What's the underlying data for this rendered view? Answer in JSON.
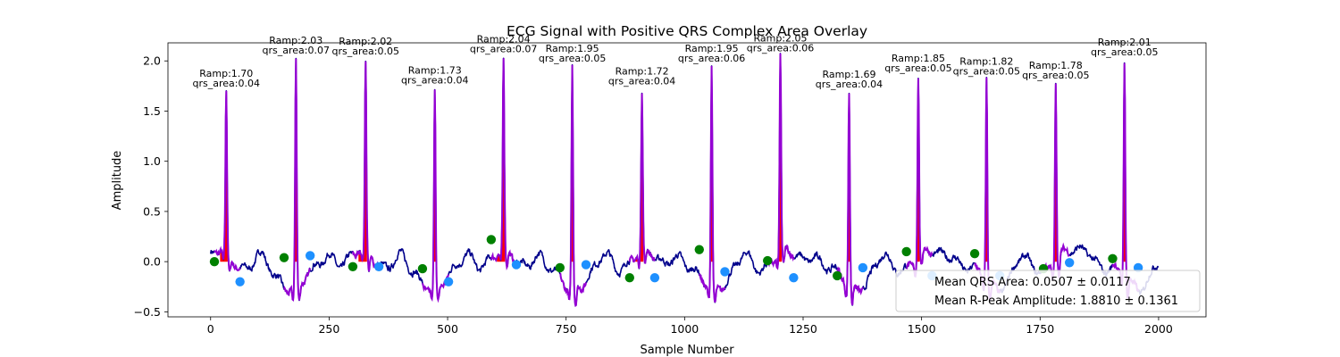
{
  "chart_data": {
    "type": "line",
    "title": "ECG Signal with Positive QRS Complex Area Overlay",
    "xlabel": "Sample Number",
    "ylabel": "Amplitude",
    "xlim": [
      -90,
      2100
    ],
    "ylim": [
      -0.55,
      2.18
    ],
    "xticks": [
      0,
      250,
      500,
      750,
      1000,
      1250,
      1500,
      1750,
      2000
    ],
    "yticks": [
      -0.5,
      0.0,
      0.5,
      1.0,
      1.5,
      2.0
    ],
    "xtick_labels": [
      "0",
      "250",
      "500",
      "750",
      "1000",
      "1250",
      "1500",
      "1750",
      "2000"
    ],
    "ytick_labels": [
      "−0.5",
      "0.0",
      "0.5",
      "1.0",
      "1.5",
      "2.0"
    ],
    "grid": false,
    "legend_position": "lower-right",
    "colors": {
      "signal": "#00008b",
      "qrs_segment": "#9400d3",
      "qrs_area": "#ff0000",
      "onset_marker": "#008000",
      "offset_marker": "#1e90ff"
    },
    "beats": [
      {
        "r_x": 33,
        "r_amp": 1.7,
        "qrs_area": 0.04,
        "onset_x": 8,
        "onset_y": 0.0,
        "offset_x": 62,
        "offset_y": -0.2,
        "ramp_label": "Ramp:1.70",
        "area_label": "qrs_area:0.04"
      },
      {
        "r_x": 180,
        "r_amp": 2.03,
        "qrs_area": 0.07,
        "onset_x": 155,
        "onset_y": 0.04,
        "offset_x": 210,
        "offset_y": 0.06,
        "ramp_label": "Ramp:2.03",
        "area_label": "qrs_area:0.07"
      },
      {
        "r_x": 327,
        "r_amp": 2.02,
        "qrs_area": 0.05,
        "onset_x": 300,
        "onset_y": -0.05,
        "offset_x": 355,
        "offset_y": -0.05,
        "ramp_label": "Ramp:2.02",
        "area_label": "qrs_area:0.05"
      },
      {
        "r_x": 473,
        "r_amp": 1.73,
        "qrs_area": 0.04,
        "onset_x": 447,
        "onset_y": -0.07,
        "offset_x": 502,
        "offset_y": -0.2,
        "ramp_label": "Ramp:1.73",
        "area_label": "qrs_area:0.04"
      },
      {
        "r_x": 618,
        "r_amp": 2.04,
        "qrs_area": 0.07,
        "onset_x": 592,
        "onset_y": 0.22,
        "offset_x": 645,
        "offset_y": -0.03,
        "ramp_label": "Ramp:2.04",
        "area_label": "qrs_area:0.07"
      },
      {
        "r_x": 763,
        "r_amp": 1.95,
        "qrs_area": 0.05,
        "onset_x": 737,
        "onset_y": -0.06,
        "offset_x": 792,
        "offset_y": -0.03,
        "ramp_label": "Ramp:1.95",
        "area_label": "qrs_area:0.05"
      },
      {
        "r_x": 910,
        "r_amp": 1.72,
        "qrs_area": 0.04,
        "onset_x": 884,
        "onset_y": -0.16,
        "offset_x": 937,
        "offset_y": -0.16,
        "ramp_label": "Ramp:1.72",
        "area_label": "qrs_area:0.04"
      },
      {
        "r_x": 1057,
        "r_amp": 1.95,
        "qrs_area": 0.06,
        "onset_x": 1031,
        "onset_y": 0.12,
        "offset_x": 1085,
        "offset_y": -0.1,
        "ramp_label": "Ramp:1.95",
        "area_label": "qrs_area:0.06"
      },
      {
        "r_x": 1202,
        "r_amp": 2.05,
        "qrs_area": 0.06,
        "onset_x": 1175,
        "onset_y": 0.01,
        "offset_x": 1230,
        "offset_y": -0.16,
        "ramp_label": "Ramp:2.05",
        "area_label": "qrs_area:0.06"
      },
      {
        "r_x": 1347,
        "r_amp": 1.69,
        "qrs_area": 0.04,
        "onset_x": 1322,
        "onset_y": -0.14,
        "offset_x": 1376,
        "offset_y": -0.06,
        "ramp_label": "Ramp:1.69",
        "area_label": "qrs_area:0.04"
      },
      {
        "r_x": 1493,
        "r_amp": 1.85,
        "qrs_area": 0.05,
        "onset_x": 1468,
        "onset_y": 0.1,
        "offset_x": 1522,
        "offset_y": -0.14,
        "ramp_label": "Ramp:1.85",
        "area_label": "qrs_area:0.05"
      },
      {
        "r_x": 1637,
        "r_amp": 1.82,
        "qrs_area": 0.05,
        "onset_x": 1612,
        "onset_y": 0.08,
        "offset_x": 1665,
        "offset_y": -0.14,
        "ramp_label": "Ramp:1.82",
        "area_label": "qrs_area:0.05"
      },
      {
        "r_x": 1783,
        "r_amp": 1.78,
        "qrs_area": 0.05,
        "onset_x": 1757,
        "onset_y": -0.07,
        "offset_x": 1812,
        "offset_y": -0.01,
        "ramp_label": "Ramp:1.78",
        "area_label": "qrs_area:0.05"
      },
      {
        "r_x": 1928,
        "r_amp": 2.01,
        "qrs_area": 0.05,
        "onset_x": 1903,
        "onset_y": 0.03,
        "offset_x": 1957,
        "offset_y": -0.06,
        "ramp_label": "Ramp:2.01",
        "area_label": "qrs_area:0.05"
      }
    ],
    "signal_x_range": [
      0,
      2000
    ],
    "legend": {
      "mean_qrs_area": "Mean QRS Area: 0.0507 ± 0.0117",
      "mean_r_peak": "Mean R-Peak Amplitude: 1.8810 ± 0.1361"
    }
  }
}
